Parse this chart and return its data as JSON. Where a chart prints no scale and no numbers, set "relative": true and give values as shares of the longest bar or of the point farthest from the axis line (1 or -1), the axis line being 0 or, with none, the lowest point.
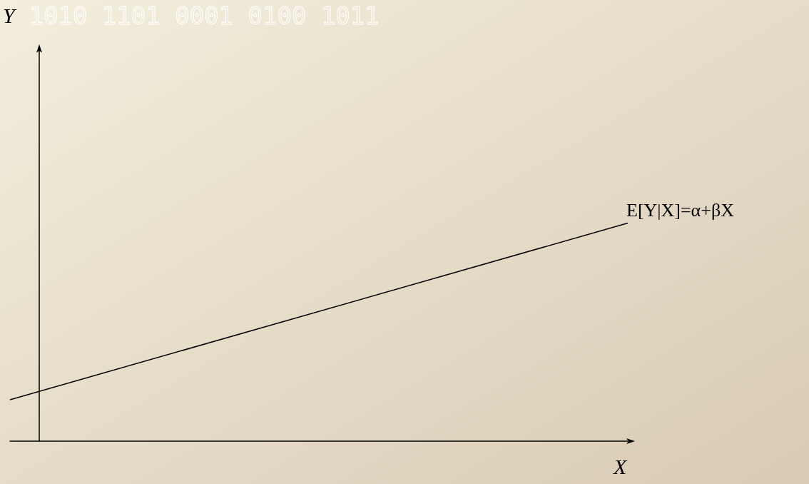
{
  "chart_data": {
    "type": "line",
    "relative": true,
    "xlabel": "X",
    "categories": [
      null,
      null
    ],
    "series": [
      {
        "name": "E[Y|X]=α+βX",
        "color": "#000000",
        "values": [
          0.19,
          1
        ]
      }
    ],
    "annotations": [
      "1010 1101 0001 0100 1011",
      "Y"
    ],
    "marker": "none",
    "grid": false,
    "legend": false
  }
}
